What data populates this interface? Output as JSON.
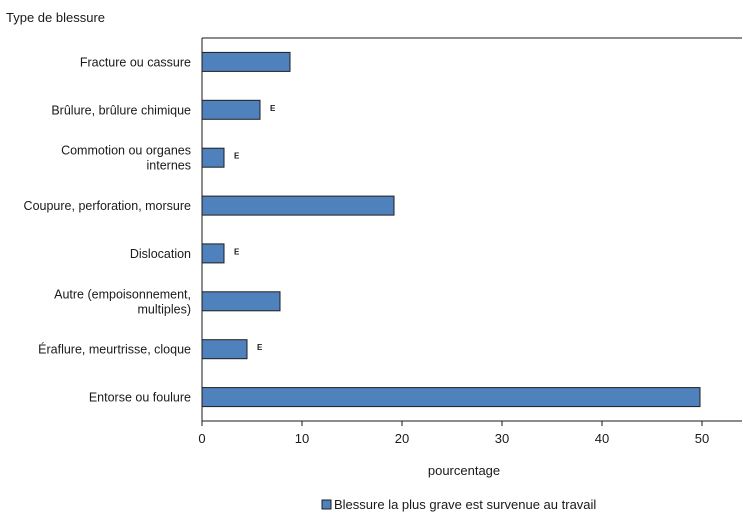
{
  "chart_data": {
    "type": "bar",
    "orientation": "horizontal",
    "y_title": "Type de blessure",
    "xlabel": "pourcentage",
    "xlim": [
      0,
      54
    ],
    "xticks": [
      0,
      10,
      20,
      30,
      40,
      50
    ],
    "grid": false,
    "legend_position": "bottom",
    "categories": [
      "Fracture ou cassure",
      "Brûlure, brûlure chimique",
      "Commotion ou organes internes",
      "Coupure, perforation, morsure",
      "Dislocation",
      "Autre (empoisonnement, multiples)",
      "Éraflure, meurtrisse, cloque",
      "Entorse ou foulure"
    ],
    "category_lines": [
      [
        "Fracture ou cassure"
      ],
      [
        "Brûlure, brûlure chimique"
      ],
      [
        "Commotion ou organes",
        "internes"
      ],
      [
        "Coupure, perforation, morsure"
      ],
      [
        "Dislocation"
      ],
      [
        "Autre (empoisonnement,",
        "multiples)"
      ],
      [
        "Éraflure, meurtrisse, cloque"
      ],
      [
        "Entorse ou foulure"
      ]
    ],
    "series": [
      {
        "name": "Blessure la plus grave est survenue au travail",
        "values": [
          8.8,
          5.8,
          2.2,
          19.2,
          2.2,
          7.8,
          4.5,
          49.8
        ],
        "flags": [
          "",
          "E",
          "E",
          "",
          "E",
          "",
          "E",
          ""
        ],
        "color": "#4f81bd",
        "edge_color": "#1f1f1f"
      }
    ]
  }
}
